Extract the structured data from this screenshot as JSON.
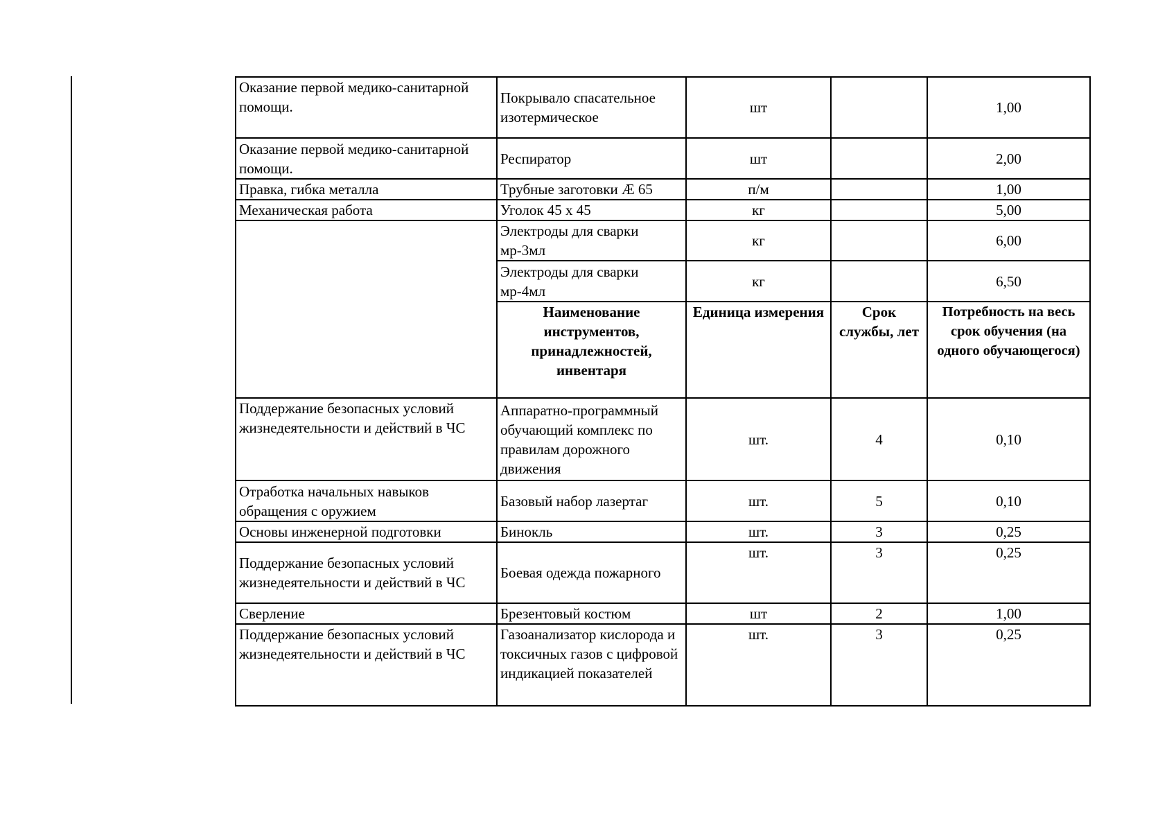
{
  "header": {
    "name": "Наименование инструментов, принадлежностей, инвентаря",
    "unit": "Единица измерения",
    "life": "Срок службы, лет",
    "need": "Потребность на весь срок обучения (на одного обучающегося)"
  },
  "rows_top": [
    {
      "activity": " Оказание первой медико-санитарной помощи.",
      "item": "Покрывало спасательное изотермическое",
      "unit": "шт",
      "life": "",
      "need": "1,00"
    },
    {
      "activity": "Оказание первой медико-санитарной помощи.",
      "item": "Респиратор",
      "unit": "шт",
      "life": "",
      "need": "2,00"
    },
    {
      "activity": "Правка, гибка металла",
      "item": "Трубные заготовки Æ 65",
      "unit": "п/м",
      "life": "",
      "need": "1,00"
    },
    {
      "activity": "Механическая работа",
      "item": "Уголок 45 х 45",
      "unit": "кг",
      "life": "",
      "need": "5,00"
    },
    {
      "activity": "",
      "item": "Электроды для сварки мр-3мл",
      "unit": "кг",
      "life": "",
      "need": "6,00"
    },
    {
      "activity": "",
      "item": "Электроды для сварки мр-4мл",
      "unit": "кг",
      "life": "",
      "need": "6,50"
    }
  ],
  "rows_bottom": [
    {
      "activity": "Поддержание безопасных условий жизнедеятельности и действий в ЧС",
      "item": "Аппаратно-программный обучающий комплекс по правилам дорожного движения",
      "unit": "шт.",
      "life": "4",
      "need": "0,10"
    },
    {
      "activity": "Отработка начальных навыков обращения с оружием",
      "item": "Базовый набор лазертаг",
      "unit": "шт.",
      "life": "5",
      "need": "0,10"
    },
    {
      "activity": "Основы инженерной подготовки",
      "item": "Бинокль",
      "unit": "шт.",
      "life": "3",
      "need": "0,25"
    },
    {
      "activity": "Поддержание безопасных условий жизнедеятельности и действий в ЧС",
      "item": "Боевая одежда пожарного",
      "unit": "шт.",
      "life": "3",
      "need": "0,25"
    },
    {
      "activity": "Сверление",
      "item": "Брезентовый костюм",
      "unit": "шт",
      "life": "2",
      "need": "1,00"
    },
    {
      "activity": "Поддержание безопасных условий жизнедеятельности и действий в ЧС",
      "item": "Газоанализатор кислорода и токсичных газов с цифровой индикацией показателей",
      "unit": "шт.",
      "life": "3",
      "need": "0,25"
    }
  ]
}
